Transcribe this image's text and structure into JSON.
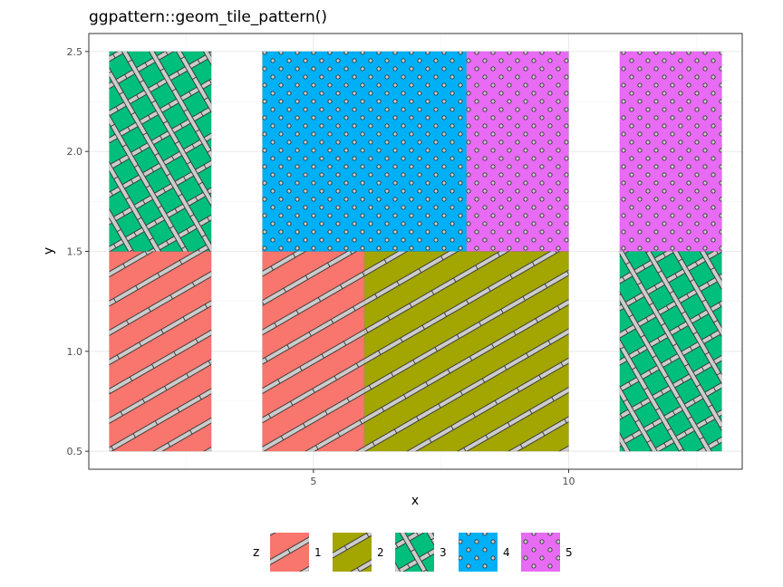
{
  "chart_data": {
    "type": "heatmap",
    "title": "ggpattern::geom_tile_pattern()",
    "xlabel": "x",
    "ylabel": "y",
    "xlim": [
      0.6,
      13.4
    ],
    "ylim": [
      0.41,
      2.59
    ],
    "x_ticks": [
      5,
      10
    ],
    "x_tick_labels": [
      "5",
      "10"
    ],
    "y_ticks": [
      0.5,
      1.0,
      1.5,
      2.0,
      2.5
    ],
    "y_tick_labels": [
      "0.5",
      "1.0",
      "1.5",
      "2.0",
      "2.5"
    ],
    "grid": true,
    "legend_position": "bottom",
    "legend": {
      "title": "z",
      "entries": [
        {
          "label": "1",
          "fill": "#F8766D",
          "pattern": "stripe"
        },
        {
          "label": "2",
          "fill": "#A3A500",
          "pattern": "stripe"
        },
        {
          "label": "3",
          "fill": "#00BF7D",
          "pattern": "crosshatch"
        },
        {
          "label": "4",
          "fill": "#00B0F6",
          "pattern": "circle"
        },
        {
          "label": "5",
          "fill": "#E76BF3",
          "pattern": "circle"
        }
      ]
    },
    "tiles": [
      {
        "x": 2,
        "y": 1,
        "width": 2,
        "height": 1,
        "z": "1"
      },
      {
        "x": 2,
        "y": 2,
        "width": 2,
        "height": 1,
        "z": "3"
      },
      {
        "x": 5,
        "y": 1,
        "width": 2,
        "height": 1,
        "z": "1"
      },
      {
        "x": 6,
        "y": 2,
        "width": 4,
        "height": 1,
        "z": "4"
      },
      {
        "x": 8,
        "y": 1,
        "width": 4,
        "height": 1,
        "z": "2"
      },
      {
        "x": 9,
        "y": 2,
        "width": 2,
        "height": 1,
        "z": "5"
      },
      {
        "x": 12,
        "y": 1,
        "width": 2,
        "height": 1,
        "z": "3"
      },
      {
        "x": 12,
        "y": 2,
        "width": 2,
        "height": 1,
        "z": "5"
      }
    ]
  }
}
